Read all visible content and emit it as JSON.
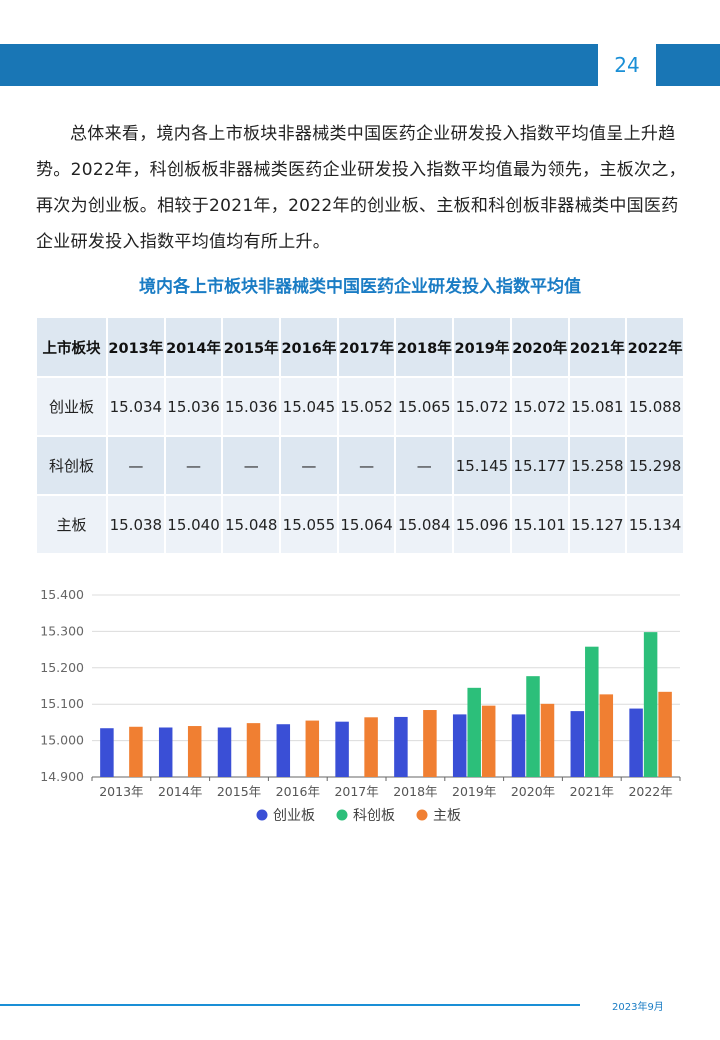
{
  "page_number": "24",
  "paragraph": "总体来看，境内各上市板块非器械类中国医药企业研发投入指数平均值呈上升趋势。2022年，科创板板非器械类医药企业研发投入指数平均值最为领先，主板次之，再次为创业板。相较于2021年，2022年的创业板、主板和科创板非器械类中国医药企业研发投入指数平均值均有所上升。",
  "table_title": "境内各上市板块非器械类中国医药企业研发投入指数平均值",
  "table": {
    "header": [
      "上市板块",
      "2013年",
      "2014年",
      "2015年",
      "2016年",
      "2017年",
      "2018年",
      "2019年",
      "2020年",
      "2021年",
      "2022年"
    ],
    "rows": [
      [
        "创业板",
        "15.034",
        "15.036",
        "15.036",
        "15.045",
        "15.052",
        "15.065",
        "15.072",
        "15.072",
        "15.081",
        "15.088"
      ],
      [
        "科创板",
        "—",
        "—",
        "—",
        "—",
        "—",
        "—",
        "15.145",
        "15.177",
        "15.258",
        "15.298"
      ],
      [
        "主板",
        "15.038",
        "15.040",
        "15.048",
        "15.055",
        "15.064",
        "15.084",
        "15.096",
        "15.101",
        "15.127",
        "15.134"
      ]
    ]
  },
  "chart_data": {
    "type": "bar",
    "title": "",
    "xlabel": "",
    "ylabel": "",
    "categories": [
      "2013年",
      "2014年",
      "2015年",
      "2016年",
      "2017年",
      "2018年",
      "2019年",
      "2020年",
      "2021年",
      "2022年"
    ],
    "series": [
      {
        "name": "创业板",
        "color": "#3a4fd6",
        "values": [
          15.034,
          15.036,
          15.036,
          15.045,
          15.052,
          15.065,
          15.072,
          15.072,
          15.081,
          15.088
        ]
      },
      {
        "name": "科创板",
        "color": "#2cbf7a",
        "values": [
          null,
          null,
          null,
          null,
          null,
          null,
          15.145,
          15.177,
          15.258,
          15.298
        ]
      },
      {
        "name": "主板",
        "color": "#f07f32",
        "values": [
          15.038,
          15.04,
          15.048,
          15.055,
          15.064,
          15.084,
          15.096,
          15.101,
          15.127,
          15.134
        ]
      }
    ],
    "ylim": [
      14.9,
      15.4
    ],
    "yticks": [
      "14.900",
      "15.000",
      "15.100",
      "15.200",
      "15.300",
      "15.400"
    ],
    "grid": true,
    "legend": "bottom"
  },
  "footer_date": "2023年9月"
}
